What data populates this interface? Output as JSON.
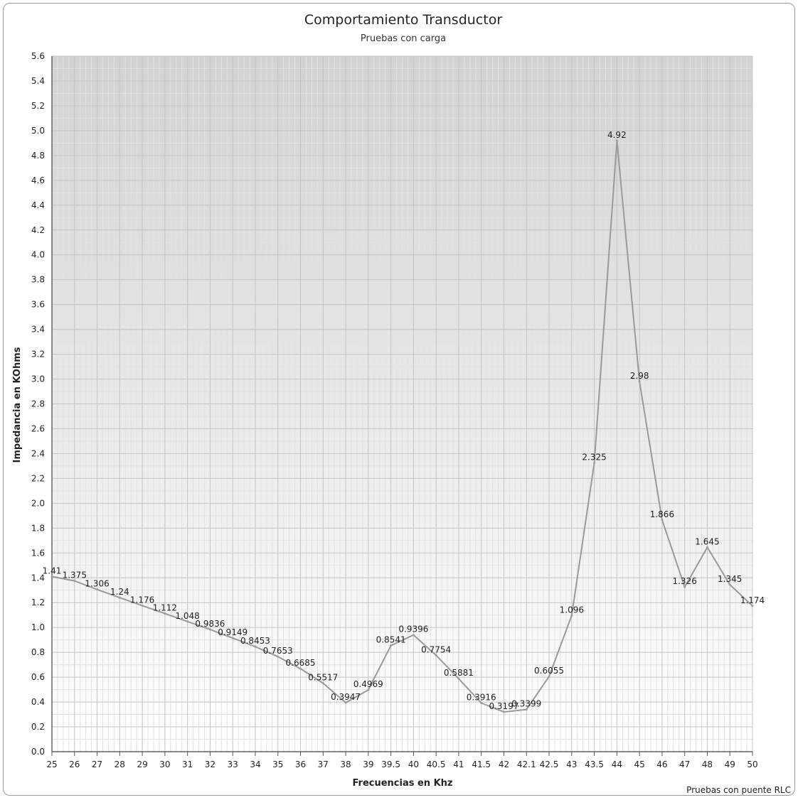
{
  "chart_data": {
    "type": "line",
    "title": "Comportamiento Transductor",
    "subtitle": "Pruebas con carga",
    "xlabel": "Frecuencias en Khz",
    "ylabel": "Impedancia en KOhms",
    "credit": "Pruebas con puente RLC",
    "ylim": [
      0,
      5.6
    ],
    "ytick_step": 0.2,
    "grid": true,
    "legend": "none",
    "line_color": "#9a9a9a",
    "background_gradient": [
      "#d2d2d2",
      "#ffffff"
    ],
    "x": [
      "25",
      "26",
      "27",
      "28",
      "29",
      "30",
      "31",
      "32",
      "33",
      "34",
      "35",
      "36",
      "37",
      "38",
      "39",
      "39.5",
      "40",
      "40.5",
      "41",
      "41.5",
      "42",
      "42.1",
      "42.5",
      "43",
      "43.5",
      "44",
      "45",
      "46",
      "47",
      "48",
      "49",
      "50"
    ],
    "series": [
      {
        "values": [
          1.41,
          1.375,
          1.306,
          1.24,
          1.176,
          1.112,
          1.048,
          0.9836,
          0.9149,
          0.8453,
          0.7653,
          0.6685,
          0.5517,
          0.3947,
          0.4969,
          0.8541,
          0.9396,
          0.7754,
          0.5881,
          0.3916,
          0.3197,
          0.3399,
          0.6055,
          1.096,
          2.325,
          4.92,
          2.98,
          1.866,
          1.326,
          1.645,
          1.345,
          1.174
        ],
        "labels": [
          "1.41",
          "1.375",
          "1.306",
          "1.24",
          "1.176",
          "1.112",
          "1.048",
          "0.9836",
          "0.9149",
          "0.8453",
          "0.7653",
          "0.6685",
          "0.5517",
          "0.3947",
          "0.4969",
          "0.8541",
          "0.9396",
          "0.7754",
          "0.5881",
          "0.3916",
          "0.3197",
          "0.3399",
          "0.6055",
          "1.096",
          "2.325",
          "4.92",
          "2.98",
          "1.866",
          "1.326",
          "1.645",
          "1.345",
          "1.174"
        ]
      }
    ]
  }
}
